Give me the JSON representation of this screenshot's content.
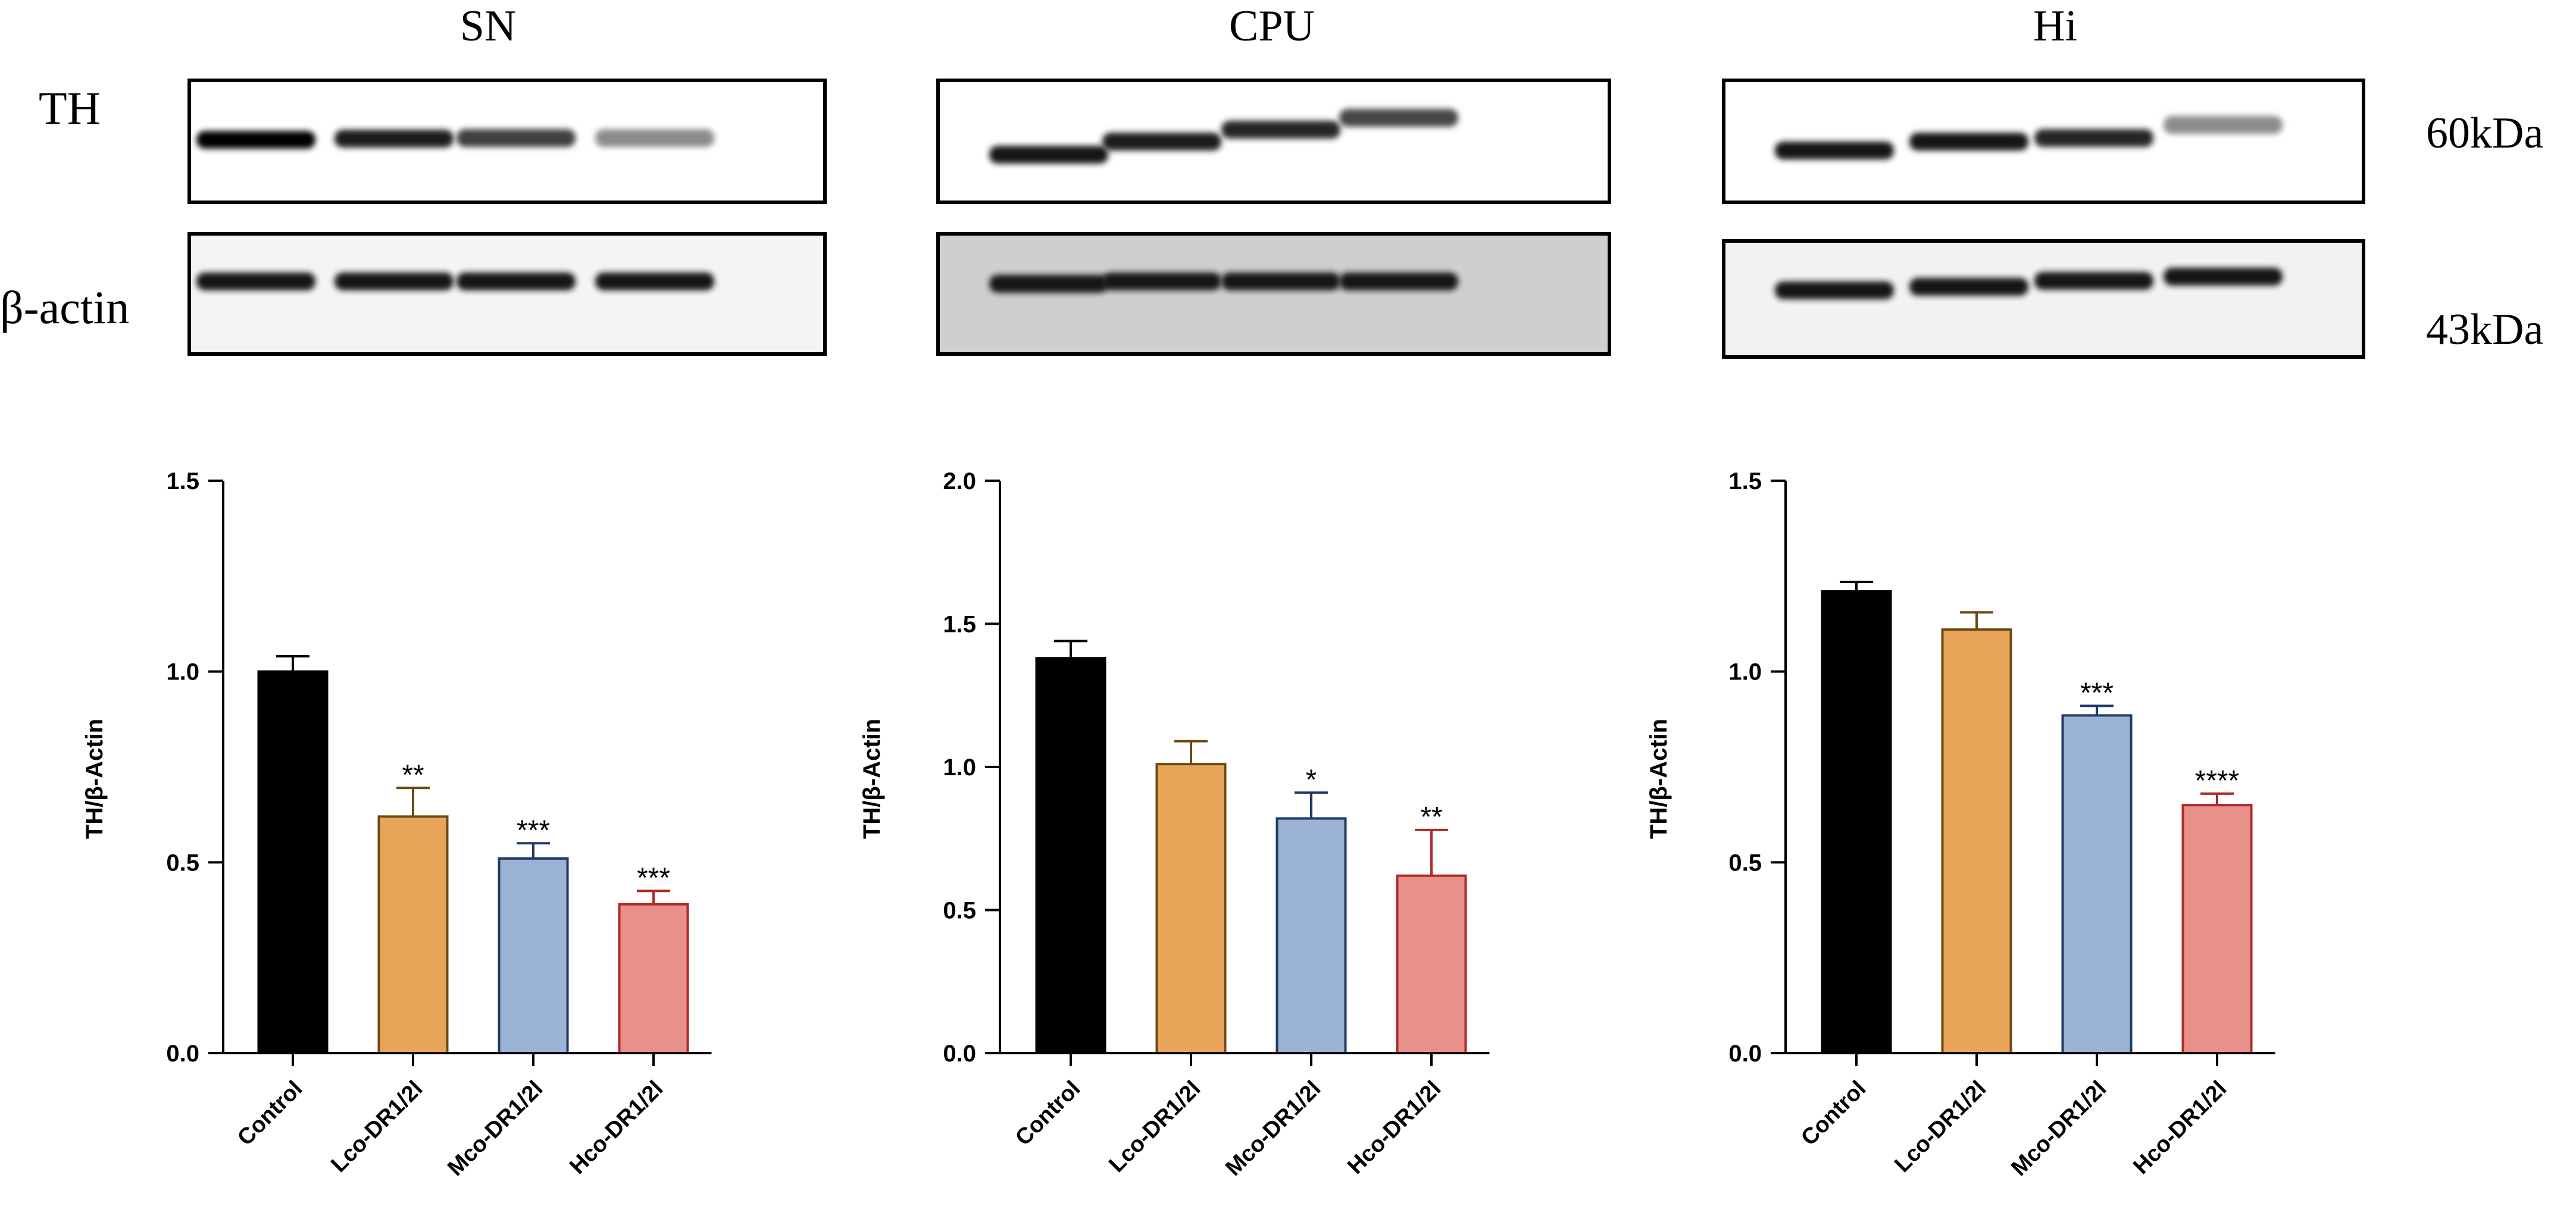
{
  "blot": {
    "regions": [
      "SN",
      "CPU",
      "Hi"
    ],
    "row_labels": [
      "TH",
      "β-actin"
    ],
    "sizes": [
      "60kDa",
      "43kDa"
    ],
    "th_intensity": [
      [
        0.98,
        0.88,
        0.75,
        0.45
      ],
      [
        0.92,
        0.88,
        0.85,
        0.72
      ],
      [
        0.9,
        0.9,
        0.85,
        0.45
      ]
    ],
    "actin_intensity": [
      [
        0.92,
        0.9,
        0.9,
        0.93
      ],
      [
        0.92,
        0.9,
        0.9,
        0.92
      ],
      [
        0.93,
        0.93,
        0.9,
        0.92
      ]
    ]
  },
  "colors": {
    "Control": "#000000",
    "Lco-DR1/2l": "#E8A55A",
    "Mco-DR1/2l": "#9AB3D5",
    "Hco-DR1/2l": "#E8908A",
    "Control_edge": "#000000",
    "Lco-DR1/2l_edge": "#6b4a12",
    "Mco-DR1/2l_edge": "#1f3a66",
    "Hco-DR1/2l_edge": "#b02828"
  },
  "chart_data": [
    {
      "type": "bar",
      "region": "SN",
      "ylabel": "TH/β-Actin",
      "ylim": [
        0,
        1.5
      ],
      "yticks": [
        "0.0",
        "0.5",
        "1.0",
        "1.5"
      ],
      "categories": [
        "Control",
        "Lco-DR1/2l",
        "Mco-DR1/2l",
        "Hco-DR1/2l"
      ],
      "values": [
        1.0,
        0.62,
        0.51,
        0.39
      ],
      "errors": [
        0.04,
        0.075,
        0.04,
        0.035
      ],
      "significance": [
        "",
        "**",
        "***",
        "***"
      ]
    },
    {
      "type": "bar",
      "region": "CPU",
      "ylabel": "TH/β-Actin",
      "ylim": [
        0,
        2.0
      ],
      "yticks": [
        "0.0",
        "0.5",
        "1.0",
        "1.5",
        "2.0"
      ],
      "categories": [
        "Control",
        "Lco-DR1/2l",
        "Mco-DR1/2l",
        "Hco-DR1/2l"
      ],
      "values": [
        1.38,
        1.01,
        0.82,
        0.62
      ],
      "errors": [
        0.06,
        0.08,
        0.09,
        0.16
      ],
      "significance": [
        "",
        "",
        "*",
        "**"
      ]
    },
    {
      "type": "bar",
      "region": "Hi",
      "ylabel": "TH/β-Actin",
      "ylim": [
        0,
        1.5
      ],
      "yticks": [
        "0.0",
        "0.5",
        "1.0",
        "1.5"
      ],
      "categories": [
        "Control",
        "Lco-DR1/2l",
        "Mco-DR1/2l",
        "Hco-DR1/2l"
      ],
      "values": [
        1.21,
        1.11,
        0.885,
        0.65
      ],
      "errors": [
        0.025,
        0.045,
        0.025,
        0.03
      ],
      "significance": [
        "",
        "",
        "***",
        "****"
      ]
    }
  ]
}
